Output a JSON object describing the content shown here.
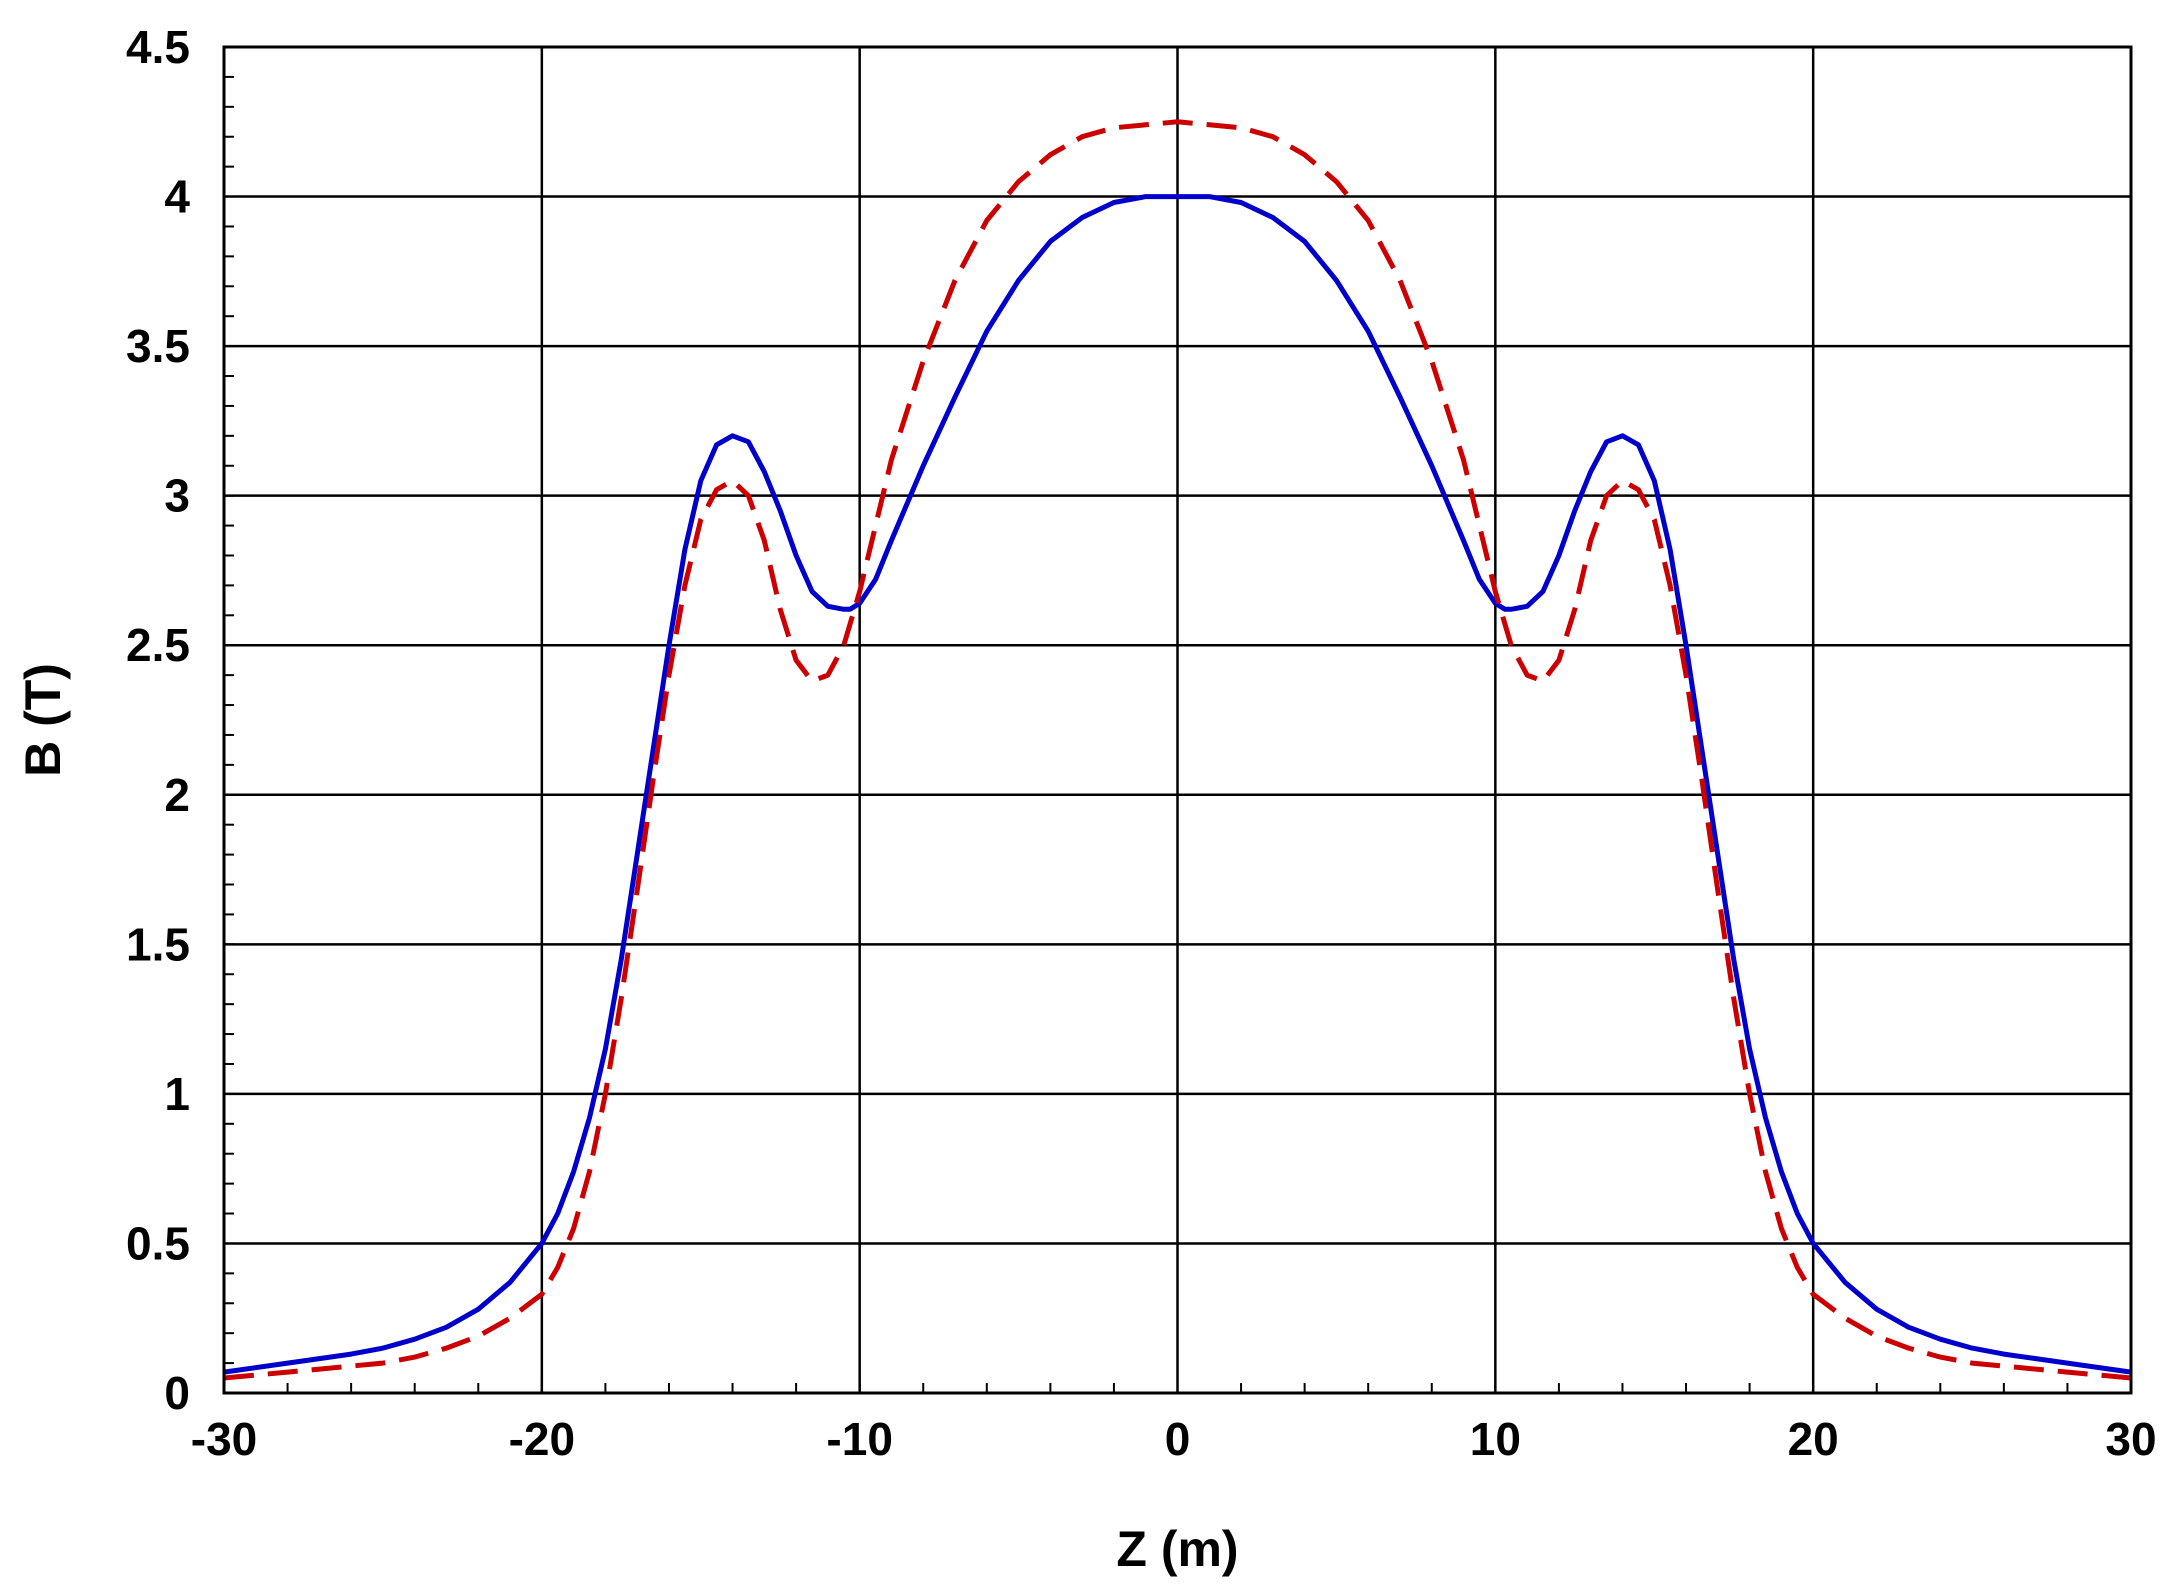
{
  "chart_data": {
    "type": "line",
    "title": "",
    "xlabel": "Z (m)",
    "ylabel": "B (T)",
    "xlim": [
      -30,
      30
    ],
    "ylim": [
      0,
      4.5
    ],
    "xticks": [
      -30,
      -20,
      -10,
      0,
      10,
      20,
      30
    ],
    "yticks": [
      0,
      0.5,
      1,
      1.5,
      2,
      2.5,
      3,
      3.5,
      4,
      4.5
    ],
    "grid": true,
    "legend": "none",
    "series": [
      {
        "style": "solid",
        "color": "#0000cc",
        "x": [
          -30,
          -28,
          -26,
          -25,
          -24,
          -23,
          -22,
          -21,
          -20,
          -19.5,
          -19,
          -18.5,
          -18,
          -17.5,
          -17,
          -16.5,
          -16,
          -15.5,
          -15,
          -14.5,
          -14,
          -13.5,
          -13,
          -12.5,
          -12,
          -11.5,
          -11,
          -10.5,
          -10.3,
          -10,
          -9.5,
          -9,
          -8,
          -7,
          -6,
          -5,
          -4,
          -3,
          -2,
          -1,
          0,
          1,
          2,
          3,
          4,
          5,
          6,
          7,
          8,
          9,
          9.5,
          10,
          10.3,
          10.5,
          11,
          11.5,
          12,
          12.5,
          13,
          13.5,
          14,
          14.5,
          15,
          15.5,
          16,
          16.5,
          17,
          17.5,
          18,
          18.5,
          19,
          19.5,
          20,
          21,
          22,
          23,
          24,
          25,
          26,
          28,
          30
        ],
        "y": [
          0.07,
          0.1,
          0.13,
          0.15,
          0.18,
          0.22,
          0.28,
          0.37,
          0.5,
          0.6,
          0.74,
          0.92,
          1.15,
          1.45,
          1.8,
          2.15,
          2.5,
          2.82,
          3.05,
          3.17,
          3.2,
          3.18,
          3.08,
          2.95,
          2.8,
          2.68,
          2.63,
          2.62,
          2.62,
          2.64,
          2.72,
          2.85,
          3.1,
          3.33,
          3.55,
          3.72,
          3.85,
          3.93,
          3.98,
          4.0,
          4.0,
          4.0,
          3.98,
          3.93,
          3.85,
          3.72,
          3.55,
          3.33,
          3.1,
          2.85,
          2.72,
          2.64,
          2.62,
          2.62,
          2.63,
          2.68,
          2.8,
          2.95,
          3.08,
          3.18,
          3.2,
          3.17,
          3.05,
          2.82,
          2.5,
          2.15,
          1.8,
          1.45,
          1.15,
          0.92,
          0.74,
          0.6,
          0.5,
          0.37,
          0.28,
          0.22,
          0.18,
          0.15,
          0.13,
          0.1,
          0.07
        ]
      },
      {
        "style": "dashed",
        "color": "#cc0000",
        "x": [
          -30,
          -28,
          -26,
          -25,
          -24,
          -23,
          -22,
          -21,
          -20,
          -19.5,
          -19,
          -18.5,
          -18,
          -17.5,
          -17,
          -16.5,
          -16,
          -15.5,
          -15,
          -14.5,
          -14,
          -13.5,
          -13,
          -12.5,
          -12,
          -11.5,
          -11,
          -10.5,
          -10,
          -9.5,
          -9,
          -8,
          -7,
          -6,
          -5,
          -4,
          -3,
          -2,
          -1,
          0,
          1,
          2,
          3,
          4,
          5,
          6,
          7,
          8,
          9,
          9.5,
          10,
          10.5,
          11,
          11.5,
          12,
          12.5,
          13,
          13.5,
          14,
          14.5,
          15,
          15.5,
          16,
          16.5,
          17,
          17.5,
          18,
          18.5,
          19,
          19.5,
          20,
          21,
          22,
          23,
          24,
          25,
          26,
          28,
          30
        ],
        "y": [
          0.05,
          0.07,
          0.09,
          0.1,
          0.12,
          0.15,
          0.19,
          0.25,
          0.33,
          0.42,
          0.55,
          0.74,
          1.0,
          1.32,
          1.68,
          2.05,
          2.4,
          2.7,
          2.92,
          3.02,
          3.05,
          3.0,
          2.85,
          2.62,
          2.45,
          2.38,
          2.4,
          2.5,
          2.68,
          2.9,
          3.12,
          3.45,
          3.72,
          3.92,
          4.05,
          4.14,
          4.2,
          4.23,
          4.24,
          4.25,
          4.24,
          4.23,
          4.2,
          4.14,
          4.05,
          3.92,
          3.72,
          3.45,
          3.12,
          2.9,
          2.68,
          2.5,
          2.4,
          2.38,
          2.45,
          2.62,
          2.85,
          3.0,
          3.05,
          3.02,
          2.92,
          2.7,
          2.4,
          2.05,
          1.68,
          1.32,
          1.0,
          0.74,
          0.55,
          0.42,
          0.33,
          0.25,
          0.19,
          0.15,
          0.12,
          0.1,
          0.09,
          0.07,
          0.05
        ]
      }
    ]
  }
}
